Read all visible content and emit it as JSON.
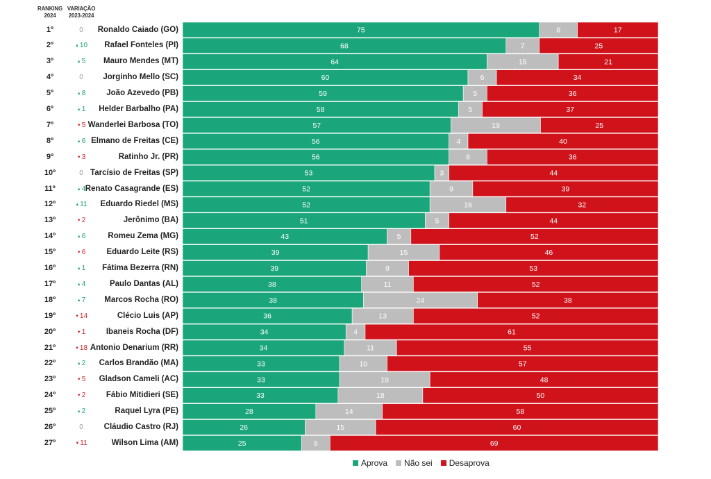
{
  "header": {
    "ranking_line1": "RANKING",
    "ranking_line2": "2024",
    "variacao_line1": "VARIAÇÃO",
    "variacao_line2": "2023-2024"
  },
  "colors": {
    "aprova": "#1aa57a",
    "nao_sei": "#bdbdbd",
    "desaprova": "#d0121b"
  },
  "legend": {
    "aprova": "Aprova",
    "nao_sei": "Não sei",
    "desaprova": "Desaprova"
  },
  "chart_data": {
    "type": "bar",
    "stacked": true,
    "orientation": "horizontal",
    "title": "",
    "xlabel": "",
    "ylabel": "",
    "xlim": [
      0,
      100
    ],
    "grid": false,
    "legend_position": "bottom",
    "series": [
      {
        "name": "Aprova",
        "key": "aprova"
      },
      {
        "name": "Não sei",
        "key": "nao_sei"
      },
      {
        "name": "Desaprova",
        "key": "desaprova"
      }
    ],
    "rows": [
      {
        "rank": "1º",
        "var": "0",
        "dir": "none",
        "name": "Ronaldo Caiado (GO)",
        "aprova": 75,
        "nao_sei": 8,
        "desaprova": 17
      },
      {
        "rank": "2º",
        "var": "10",
        "dir": "up",
        "name": "Rafael Fonteles (PI)",
        "aprova": 68,
        "nao_sei": 7,
        "desaprova": 25
      },
      {
        "rank": "3º",
        "var": "5",
        "dir": "up",
        "name": "Mauro Mendes (MT)",
        "aprova": 64,
        "nao_sei": 15,
        "desaprova": 21
      },
      {
        "rank": "4º",
        "var": "0",
        "dir": "none",
        "name": "Jorginho Mello (SC)",
        "aprova": 60,
        "nao_sei": 6,
        "desaprova": 34
      },
      {
        "rank": "5º",
        "var": "8",
        "dir": "up",
        "name": "João Azevedo (PB)",
        "aprova": 59,
        "nao_sei": 5,
        "desaprova": 36
      },
      {
        "rank": "6º",
        "var": "1",
        "dir": "up",
        "name": "Helder Barbalho (PA)",
        "aprova": 58,
        "nao_sei": 5,
        "desaprova": 37
      },
      {
        "rank": "7º",
        "var": "5",
        "dir": "down",
        "name": "Wanderlei Barbosa (TO)",
        "aprova": 57,
        "nao_sei": 19,
        "desaprova": 25
      },
      {
        "rank": "8º",
        "var": "6",
        "dir": "up",
        "name": "Elmano de Freitas (CE)",
        "aprova": 56,
        "nao_sei": 4,
        "desaprova": 40
      },
      {
        "rank": "9º",
        "var": "3",
        "dir": "down",
        "name": "Ratinho Jr. (PR)",
        "aprova": 56,
        "nao_sei": 8,
        "desaprova": 36
      },
      {
        "rank": "10º",
        "var": "0",
        "dir": "none",
        "name": "Tarcísio de Freitas (SP)",
        "aprova": 53,
        "nao_sei": 3,
        "desaprova": 44
      },
      {
        "rank": "11º",
        "var": "4",
        "dir": "up",
        "name": "Renato Casagrande (ES)",
        "aprova": 52,
        "nao_sei": 9,
        "desaprova": 39
      },
      {
        "rank": "12º",
        "var": "11",
        "dir": "up",
        "name": "Eduardo Riedel (MS)",
        "aprova": 52,
        "nao_sei": 16,
        "desaprova": 32
      },
      {
        "rank": "13º",
        "var": "2",
        "dir": "down",
        "name": "Jerônimo (BA)",
        "aprova": 51,
        "nao_sei": 5,
        "desaprova": 44
      },
      {
        "rank": "14º",
        "var": "6",
        "dir": "up",
        "name": "Romeu Zema (MG)",
        "aprova": 43,
        "nao_sei": 5,
        "desaprova": 52
      },
      {
        "rank": "15º",
        "var": "6",
        "dir": "down",
        "name": "Eduardo Leite (RS)",
        "aprova": 39,
        "nao_sei": 15,
        "desaprova": 46
      },
      {
        "rank": "16º",
        "var": "1",
        "dir": "up",
        "name": "Fátima Bezerra (RN)",
        "aprova": 39,
        "nao_sei": 9,
        "desaprova": 53
      },
      {
        "rank": "17º",
        "var": "4",
        "dir": "up",
        "name": "Paulo Dantas (AL)",
        "aprova": 38,
        "nao_sei": 11,
        "desaprova": 52
      },
      {
        "rank": "18º",
        "var": "7",
        "dir": "up",
        "name": "Marcos Rocha (RO)",
        "aprova": 38,
        "nao_sei": 24,
        "desaprova": 38
      },
      {
        "rank": "19º",
        "var": "14",
        "dir": "down",
        "name": "Clécio Luis (AP)",
        "aprova": 36,
        "nao_sei": 13,
        "desaprova": 52
      },
      {
        "rank": "20º",
        "var": "1",
        "dir": "down",
        "name": "Ibaneis Rocha (DF)",
        "aprova": 34,
        "nao_sei": 4,
        "desaprova": 61
      },
      {
        "rank": "21º",
        "var": "18",
        "dir": "down",
        "name": "Antonio Denarium (RR)",
        "aprova": 34,
        "nao_sei": 11,
        "desaprova": 55
      },
      {
        "rank": "22º",
        "var": "2",
        "dir": "up",
        "name": "Carlos Brandão (MA)",
        "aprova": 33,
        "nao_sei": 10,
        "desaprova": 57
      },
      {
        "rank": "23º",
        "var": "5",
        "dir": "down",
        "name": "Gladson Cameli (AC)",
        "aprova": 33,
        "nao_sei": 19,
        "desaprova": 48
      },
      {
        "rank": "24º",
        "var": "2",
        "dir": "down",
        "name": "Fábio Mitidieri (SE)",
        "aprova": 33,
        "nao_sei": 18,
        "desaprova": 50
      },
      {
        "rank": "25º",
        "var": "2",
        "dir": "up",
        "name": "Raquel Lyra (PE)",
        "aprova": 28,
        "nao_sei": 14,
        "desaprova": 58
      },
      {
        "rank": "26º",
        "var": "0",
        "dir": "none",
        "name": "Cláudio Castro (RJ)",
        "aprova": 26,
        "nao_sei": 15,
        "desaprova": 60
      },
      {
        "rank": "27º",
        "var": "11",
        "dir": "down",
        "name": "Wilson Lima (AM)",
        "aprova": 25,
        "nao_sei": 6,
        "desaprova": 69
      }
    ]
  }
}
